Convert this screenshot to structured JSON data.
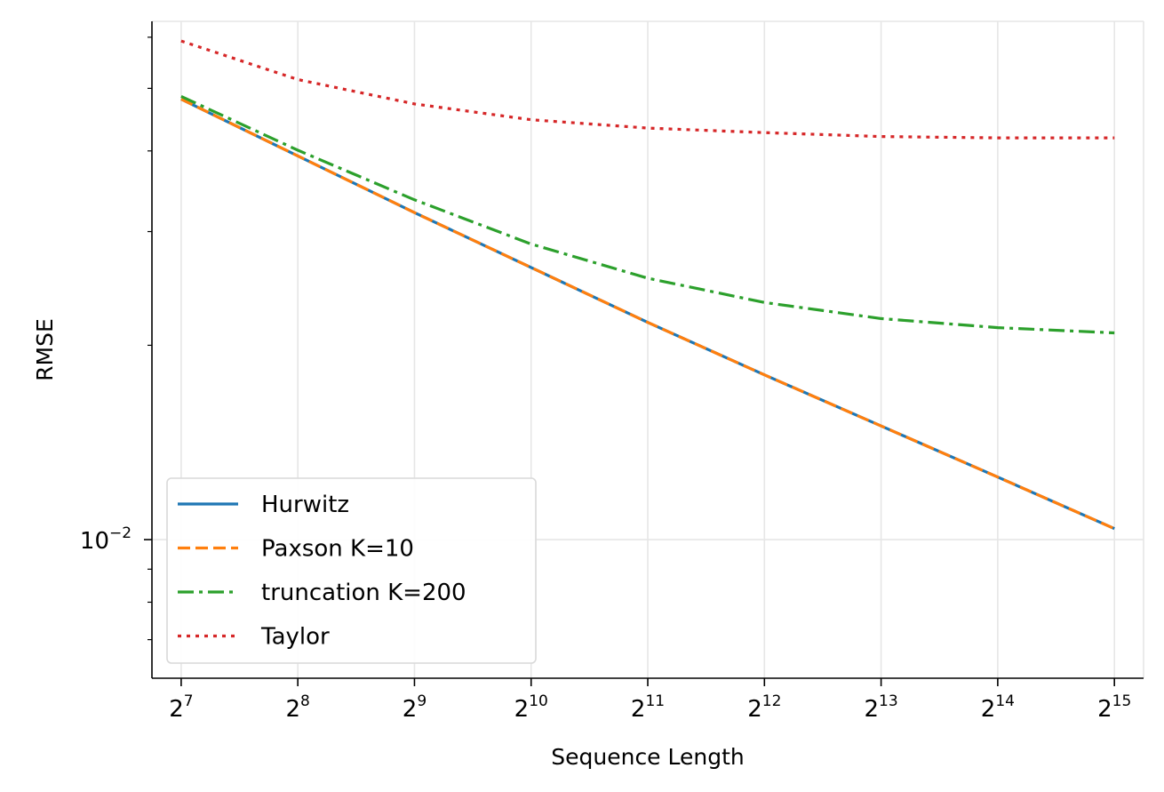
{
  "chart_data": {
    "type": "line",
    "title": "",
    "xlabel": "Sequence Length",
    "ylabel": "RMSE",
    "x_scale": "log2",
    "y_scale": "log",
    "x": [
      128,
      256,
      512,
      1024,
      2048,
      4096,
      8192,
      16384,
      32768
    ],
    "x_tick_labels": [
      {
        "base": "2",
        "exp": "7"
      },
      {
        "base": "2",
        "exp": "8"
      },
      {
        "base": "2",
        "exp": "9"
      },
      {
        "base": "2",
        "exp": "10"
      },
      {
        "base": "2",
        "exp": "11"
      },
      {
        "base": "2",
        "exp": "12"
      },
      {
        "base": "2",
        "exp": "13"
      },
      {
        "base": "2",
        "exp": "14"
      },
      {
        "base": "2",
        "exp": "15"
      }
    ],
    "y_tick_labels": [
      {
        "value": 0.01,
        "base": "10",
        "exp": "−2"
      }
    ],
    "xlim": [
      107.6,
      38968
    ],
    "ylim": [
      0.0061,
      0.0635
    ],
    "grid": true,
    "legend_position": "lower-left",
    "series": [
      {
        "name": "Hurwitz",
        "color": "#1f77b4",
        "style": "solid",
        "values": [
          0.0481,
          0.0393,
          0.0321,
          0.0264,
          0.0217,
          0.018,
          0.015,
          0.0125,
          0.0104
        ]
      },
      {
        "name": "Paxson K=10",
        "color": "#ff7f0e",
        "style": "dashed",
        "values": [
          0.0481,
          0.0393,
          0.0321,
          0.0264,
          0.0217,
          0.018,
          0.015,
          0.0125,
          0.0104
        ]
      },
      {
        "name": "truncation K=200",
        "color": "#2ca02c",
        "style": "dashdot",
        "values": [
          0.0486,
          0.0401,
          0.0336,
          0.0287,
          0.0254,
          0.0233,
          0.022,
          0.0213,
          0.0209
        ]
      },
      {
        "name": "Taylor",
        "color": "#d62728",
        "style": "dotted",
        "values": [
          0.0592,
          0.0516,
          0.0473,
          0.0447,
          0.0434,
          0.0427,
          0.0421,
          0.0419,
          0.0419
        ]
      }
    ]
  }
}
